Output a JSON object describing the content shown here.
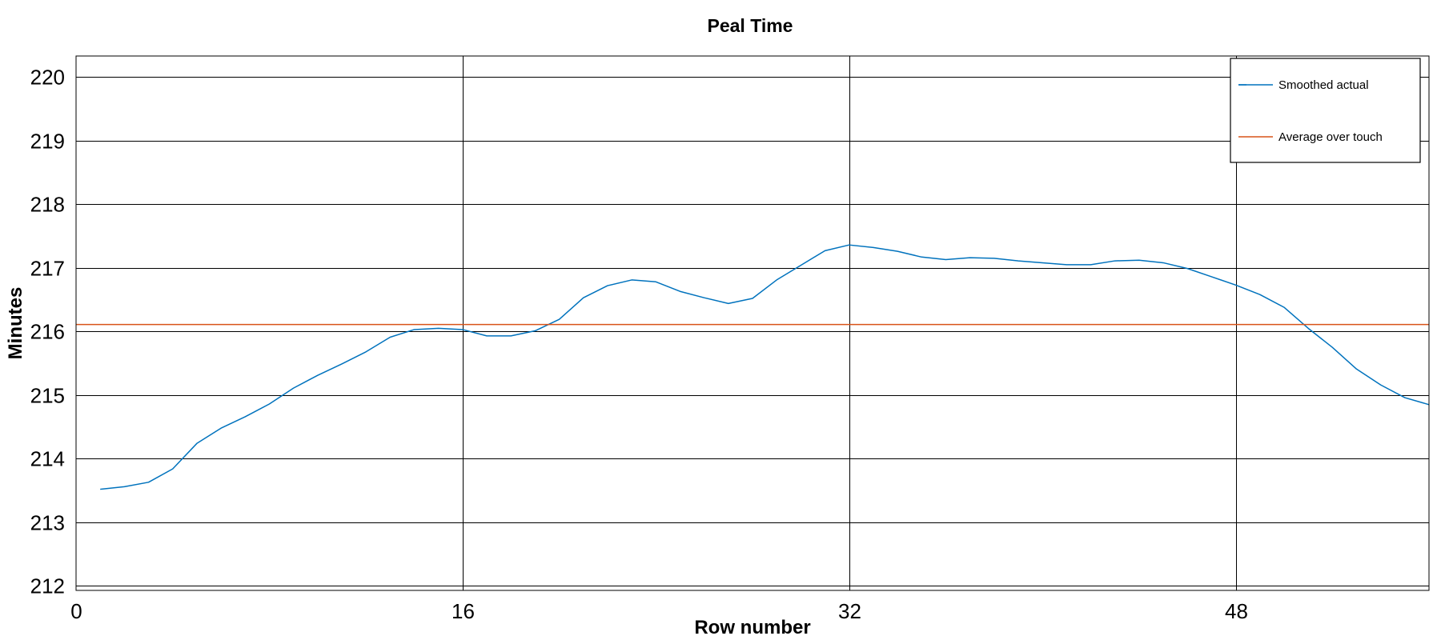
{
  "chart_data": {
    "type": "line",
    "title": "Peal Time",
    "xlabel": "Row number",
    "ylabel": "Minutes",
    "xlim": [
      0,
      56
    ],
    "ylim": [
      211.93,
      220.33
    ],
    "xticks": [
      0,
      16,
      32,
      48
    ],
    "yticks": [
      212,
      213,
      214,
      215,
      216,
      217,
      218,
      219,
      220
    ],
    "grid": true,
    "legend_position": "top-right",
    "series": [
      {
        "name": "Smoothed actual",
        "color": "#0072bd",
        "x": [
          1,
          2,
          3,
          4,
          5,
          6,
          7,
          8,
          9,
          10,
          11,
          12,
          13,
          14,
          15,
          16,
          17,
          18,
          19,
          20,
          21,
          22,
          23,
          24,
          25,
          26,
          27,
          28,
          29,
          30,
          31,
          32,
          33,
          34,
          35,
          36,
          37,
          38,
          39,
          40,
          41,
          42,
          43,
          44,
          45,
          46,
          47,
          48,
          49,
          50,
          51,
          52,
          53,
          54,
          55,
          56
        ],
        "y": [
          213.52,
          213.56,
          213.63,
          213.84,
          214.24,
          214.48,
          214.66,
          214.86,
          215.11,
          215.31,
          215.49,
          215.68,
          215.91,
          216.03,
          216.05,
          216.03,
          215.93,
          215.93,
          216.01,
          216.19,
          216.53,
          216.72,
          216.81,
          216.78,
          216.63,
          216.53,
          216.44,
          216.52,
          216.81,
          217.04,
          217.27,
          217.36,
          217.32,
          217.26,
          217.17,
          217.13,
          217.16,
          217.15,
          217.11,
          217.08,
          217.05,
          217.05,
          217.11,
          217.12,
          217.08,
          216.99,
          216.86,
          216.73,
          216.58,
          216.38,
          216.05,
          215.75,
          215.41,
          215.16,
          214.96,
          214.85
        ]
      },
      {
        "name": "Average over touch",
        "color": "#d95319",
        "x": [
          0,
          56
        ],
        "y": [
          216.11,
          216.11
        ]
      }
    ]
  }
}
